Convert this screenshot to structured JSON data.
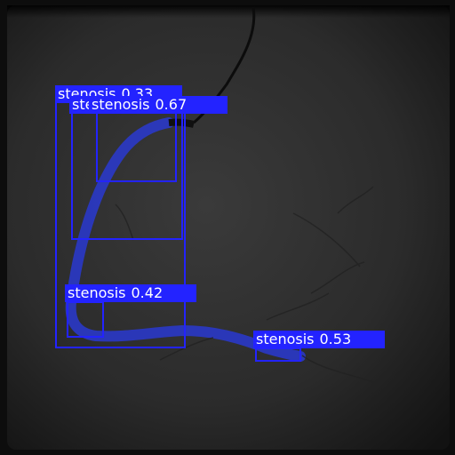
{
  "image": {
    "kind": "coronary angiography frame with stenosis detection overlays",
    "box_color": "#2323ff",
    "label_text_color": "#ffffff"
  },
  "detections": [
    {
      "id": "d1",
      "label": "stenosis",
      "score": "0.33"
    },
    {
      "id": "d2",
      "label": "stenosis",
      "score": "0.67"
    },
    {
      "id": "d3",
      "label": "stenosis",
      "score": ""
    },
    {
      "id": "d4",
      "label": "stenosis",
      "score": "0.42"
    },
    {
      "id": "d5",
      "label": "stenosis",
      "score": "0.53"
    }
  ]
}
